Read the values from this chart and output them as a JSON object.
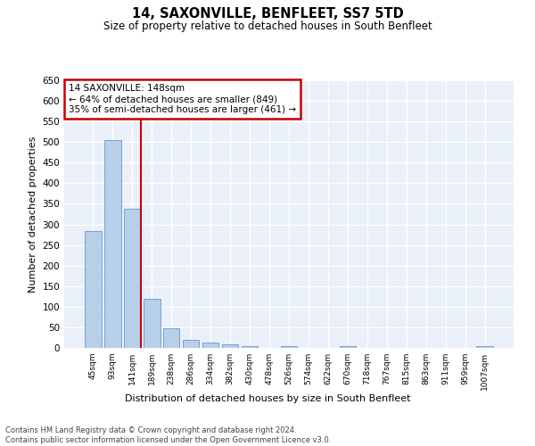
{
  "title": "14, SAXONVILLE, BENFLEET, SS7 5TD",
  "subtitle": "Size of property relative to detached houses in South Benfleet",
  "xlabel": "Distribution of detached houses by size in South Benfleet",
  "ylabel": "Number of detached properties",
  "categories": [
    "45sqm",
    "93sqm",
    "141sqm",
    "189sqm",
    "238sqm",
    "286sqm",
    "334sqm",
    "382sqm",
    "430sqm",
    "478sqm",
    "526sqm",
    "574sqm",
    "622sqm",
    "670sqm",
    "718sqm",
    "767sqm",
    "815sqm",
    "863sqm",
    "911sqm",
    "959sqm",
    "1007sqm"
  ],
  "values": [
    283,
    505,
    338,
    119,
    47,
    20,
    12,
    9,
    5,
    0,
    5,
    0,
    0,
    5,
    0,
    0,
    0,
    0,
    0,
    0,
    5
  ],
  "bar_color": "#b8cfe8",
  "bar_edge_color": "#6699cc",
  "vline_color": "#cc0000",
  "annotation_lines": [
    "14 SAXONVILLE: 148sqm",
    "← 64% of detached houses are smaller (849)",
    "35% of semi-detached houses are larger (461) →"
  ],
  "annotation_box_color": "#cc0000",
  "ylim": [
    0,
    650
  ],
  "yticks": [
    0,
    50,
    100,
    150,
    200,
    250,
    300,
    350,
    400,
    450,
    500,
    550,
    600,
    650
  ],
  "bg_color": "#eaf0f9",
  "grid_color": "#ffffff",
  "footer_line1": "Contains HM Land Registry data © Crown copyright and database right 2024.",
  "footer_line2": "Contains public sector information licensed under the Open Government Licence v3.0."
}
